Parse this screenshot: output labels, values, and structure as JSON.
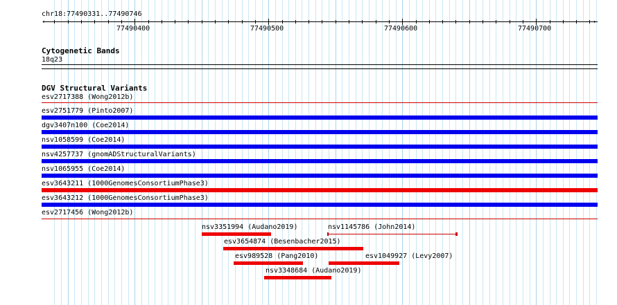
{
  "ruler": {
    "region": "chr18:77490331..77490746",
    "start": 77490331,
    "end": 77490746,
    "tick_labels": [
      "77490400",
      "77490500",
      "77490600",
      "77490700"
    ]
  },
  "cytobands": {
    "title": "Cytogenetic Bands",
    "band": "18q23"
  },
  "dgv": {
    "title": "DGV Structural Variants",
    "rows": [
      {
        "label": "esv2717388 (Wong2012b)",
        "color": "#cc0000",
        "type": "loss-thin"
      },
      {
        "label": "esv2751779 (Pinto2007)",
        "color": "#0000ee",
        "type": "gain"
      },
      {
        "label": "dgv3407n100 (Coe2014)",
        "color": "#0000ee",
        "type": "gain"
      },
      {
        "label": "nsv1058599 (Coe2014)",
        "color": "#0000ee",
        "type": "gain"
      },
      {
        "label": "nsv4257737 (gnomADStructuralVariants)",
        "color": "#0000ee",
        "type": "gain"
      },
      {
        "label": "nsv1065955 (Coe2014)",
        "color": "#0000ee",
        "type": "gain"
      },
      {
        "label": "esv3643211 (1000GenomesConsortiumPhase3)",
        "color": "#ee0000",
        "type": "loss"
      },
      {
        "label": "esv3643212 (1000GenomesConsortiumPhase3)",
        "color": "#0000ee",
        "type": "gain"
      },
      {
        "label": "esv2717456 (Wong2012b)",
        "color": "#cc0000",
        "type": "loss-thin"
      }
    ],
    "small_features": [
      {
        "label": "nsv3351994 (Audano2019)",
        "start": 77490450,
        "end": 77490502,
        "color": "#ee0000"
      },
      {
        "label": "nsv1145786 (John2014)",
        "start": 77490544,
        "end": 77490641,
        "color": "#cc0000",
        "style": "thin"
      },
      {
        "label": "esv3654874 (Besenbacher2015)",
        "start": 77490466,
        "end": 77490571,
        "color": "#ee0000"
      },
      {
        "label": "esv989528 (Pang2010)",
        "start": 77490474,
        "end": 77490526,
        "color": "#ee0000"
      },
      {
        "label": "esv1049927 (Levy2007)",
        "start": 77490545,
        "end": 77490598,
        "color": "#ee0000"
      },
      {
        "label": "nsv3348684 (Audano2019)",
        "start": 77490497,
        "end": 77490547,
        "color": "#ee0000"
      }
    ]
  }
}
